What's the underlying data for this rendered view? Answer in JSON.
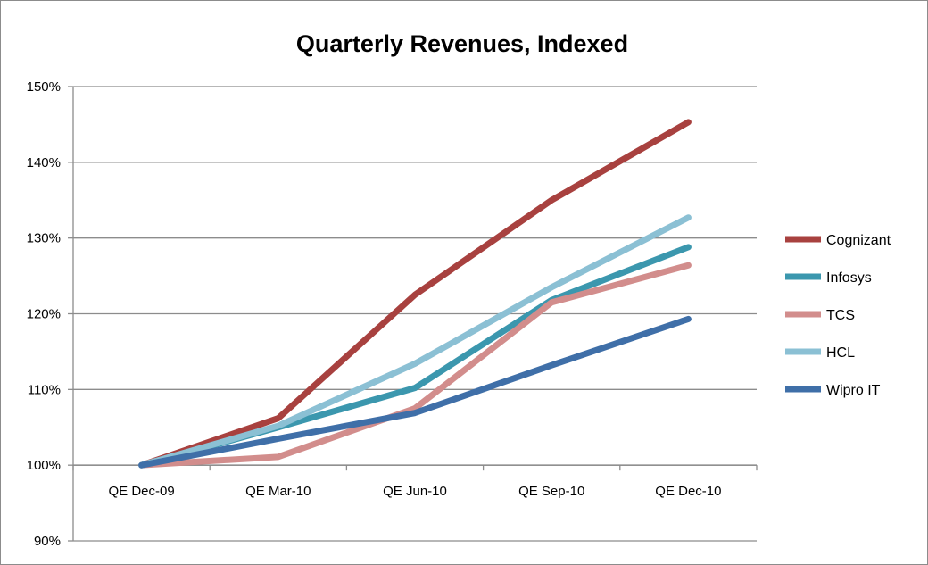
{
  "chart_data": {
    "type": "line",
    "title": "Quarterly Revenues, Indexed",
    "xlabel": "",
    "ylabel": "",
    "categories": [
      "QE Dec-09",
      "QE Mar-10",
      "QE Jun-10",
      "QE Sep-10",
      "QE Dec-10"
    ],
    "ylim": [
      90,
      150
    ],
    "yticks": [
      90,
      100,
      110,
      120,
      130,
      140,
      150
    ],
    "ytick_labels": [
      "90%",
      "100%",
      "110%",
      "120%",
      "130%",
      "140%",
      "150%"
    ],
    "x_axis_crosses_at": 100,
    "grid": true,
    "legend_position": "right",
    "series": [
      {
        "name": "Cognizant",
        "color": "#a8413f",
        "values": [
          100,
          106.2,
          122.5,
          135.0,
          145.3
        ]
      },
      {
        "name": "Infosys",
        "color": "#3b97ae",
        "values": [
          100,
          105.0,
          110.2,
          121.8,
          128.8
        ]
      },
      {
        "name": "TCS",
        "color": "#d28d8c",
        "values": [
          100,
          101.1,
          107.5,
          121.5,
          126.4
        ]
      },
      {
        "name": "HCL",
        "color": "#8bc0d4",
        "values": [
          100,
          105.2,
          113.4,
          123.5,
          132.7
        ]
      },
      {
        "name": "Wipro IT",
        "color": "#3f6fa8",
        "values": [
          100,
          103.5,
          106.9,
          113.2,
          119.3
        ]
      }
    ]
  }
}
